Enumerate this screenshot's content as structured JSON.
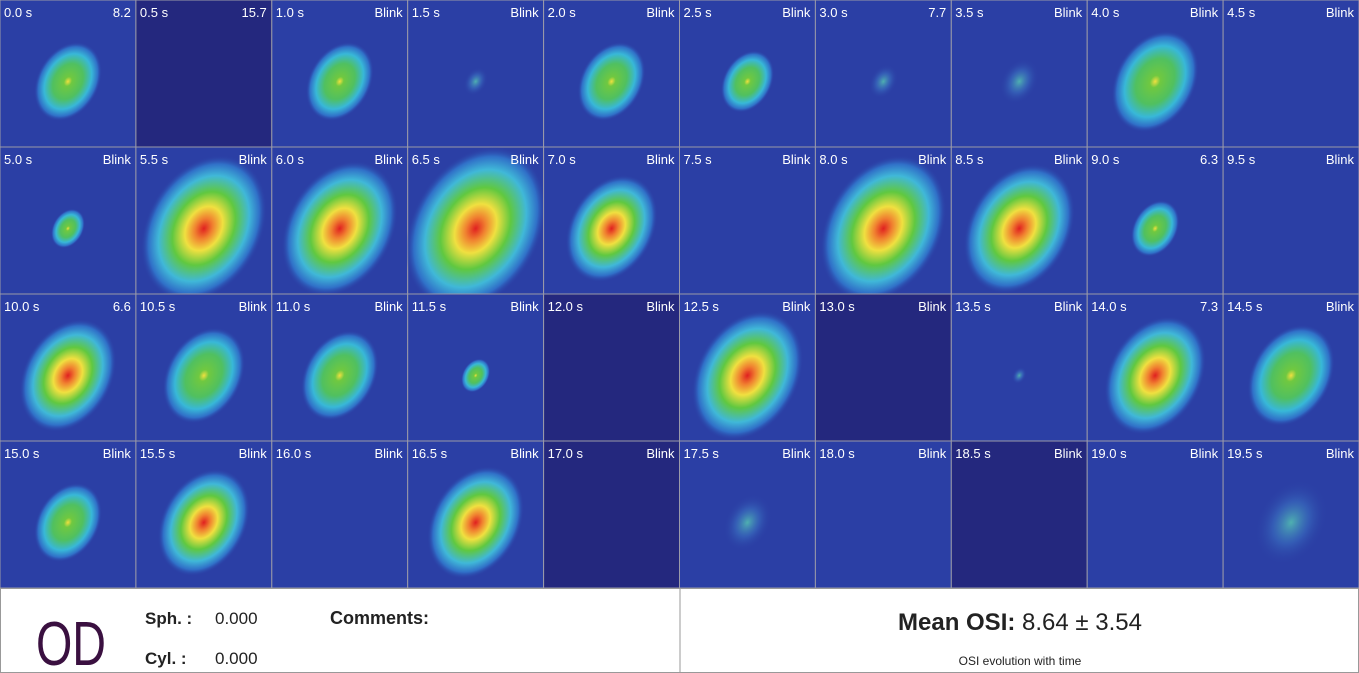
{
  "tiles": [
    {
      "time": "0.0 s",
      "value": 8.2
    },
    {
      "time": "0.5 s",
      "value": 15.7
    },
    {
      "time": "1.0 s",
      "value": "Blink"
    },
    {
      "time": "1.5 s",
      "value": "Blink"
    },
    {
      "time": "2.0 s",
      "value": "Blink"
    },
    {
      "time": "2.5 s",
      "value": "Blink"
    },
    {
      "time": "3.0 s",
      "value": 7.7
    },
    {
      "time": "3.5 s",
      "value": "Blink"
    },
    {
      "time": "4.0 s",
      "value": "Blink"
    },
    {
      "time": "4.5 s",
      "value": "Blink"
    },
    {
      "time": "5.0 s",
      "value": "Blink"
    },
    {
      "time": "5.5 s",
      "value": "Blink"
    },
    {
      "time": "6.0 s",
      "value": "Blink"
    },
    {
      "time": "6.5 s",
      "value": "Blink"
    },
    {
      "time": "7.0 s",
      "value": "Blink"
    },
    {
      "time": "7.5 s",
      "value": "Blink"
    },
    {
      "time": "8.0 s",
      "value": "Blink"
    },
    {
      "time": "8.5 s",
      "value": "Blink"
    },
    {
      "time": "9.0 s",
      "value": 6.3
    },
    {
      "time": "9.5 s",
      "value": "Blink"
    },
    {
      "time": "10.0 s",
      "value": 6.6
    },
    {
      "time": "10.5 s",
      "value": "Blink"
    },
    {
      "time": "11.0 s",
      "value": "Blink"
    },
    {
      "time": "11.5 s",
      "value": "Blink"
    },
    {
      "time": "12.0 s",
      "value": "Blink"
    },
    {
      "time": "12.5 s",
      "value": "Blink"
    },
    {
      "time": "13.0 s",
      "value": "Blink"
    },
    {
      "time": "13.5 s",
      "value": "Blink"
    },
    {
      "time": "14.0 s",
      "value": 7.3
    },
    {
      "time": "14.5 s",
      "value": "Blink"
    },
    {
      "time": "15.0 s",
      "value": "Blink"
    },
    {
      "time": "15.5 s",
      "value": "Blink"
    },
    {
      "time": "16.0 s",
      "value": "Blink"
    },
    {
      "time": "16.5 s",
      "value": "Blink"
    },
    {
      "time": "17.0 s",
      "value": "Blink"
    },
    {
      "time": "17.5 s",
      "value": "Blink"
    },
    {
      "time": "18.0 s",
      "value": "Blink"
    },
    {
      "time": "18.5 s",
      "value": "Blink"
    },
    {
      "time": "19.0 s",
      "value": "Blink"
    },
    {
      "time": "19.5 s",
      "value": "Blink"
    }
  ],
  "footer": {
    "eye": "OD",
    "sphere": {
      "label": "Sph. :",
      "value": "0.000"
    },
    "cylinder": {
      "label": "Cyl. :",
      "value": "0.000"
    },
    "comments": "Comments:",
    "mean_osi": {
      "label": "Mean OSI:",
      "value": 8.64,
      "sign": "±",
      "sd": 3.54
    },
    "caption": "OSI evolution with time"
  }
}
